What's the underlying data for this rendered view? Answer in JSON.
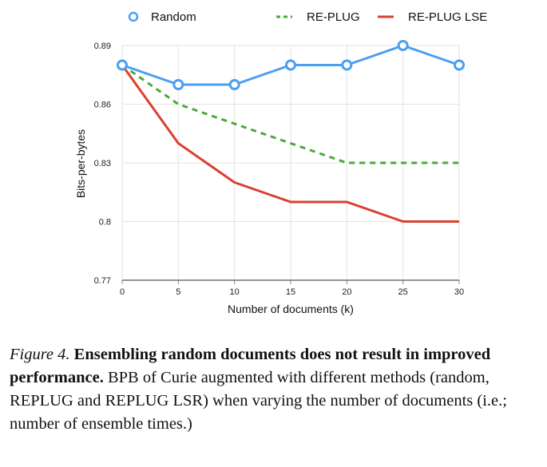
{
  "chart_data": {
    "type": "line",
    "xlabel": "Number of documents (k)",
    "ylabel": "Bits-per-bytes",
    "x": [
      0,
      5,
      10,
      15,
      20,
      25,
      30
    ],
    "xlim": [
      0,
      30
    ],
    "ylim": [
      0.77,
      0.89
    ],
    "yticks": [
      0.77,
      0.8,
      0.83,
      0.86,
      0.89
    ],
    "ytick_labels": [
      "0.77",
      "0.8",
      "0.83",
      "0.86",
      "0.89"
    ],
    "xtick_labels": [
      "0",
      "5",
      "10",
      "15",
      "20",
      "25",
      "30"
    ],
    "grid": "horizontal and vertical",
    "legend_position": "top",
    "series": [
      {
        "name": "Random",
        "values": [
          0.88,
          0.87,
          0.87,
          0.88,
          0.88,
          0.89,
          0.88
        ],
        "color": "#4a9ff0",
        "style": "solid-markers"
      },
      {
        "name": "RE-PLUG",
        "values": [
          0.88,
          0.86,
          0.85,
          0.84,
          0.83,
          0.83,
          0.83
        ],
        "color": "#4aa93a",
        "style": "dashed"
      },
      {
        "name": "RE-PLUG LSE",
        "values": [
          0.88,
          0.84,
          0.82,
          0.81,
          0.81,
          0.8,
          0.8
        ],
        "color": "#d9412f",
        "style": "solid"
      }
    ]
  },
  "caption": {
    "label": "Figure 4.",
    "title": "Ensembling random documents does not result in improved performance.",
    "body_1": "BPB of Curie augmented with different methods (random, R",
    "sc_1": "E",
    "body_2": "P",
    "sc_2": "LUG",
    "body_3": " and R",
    "sc_3": "E",
    "body_4": "P",
    "sc_4": "LUG",
    "body_5": " LSR) when varying the number of documents (i.e.; number of ensemble times.)"
  }
}
